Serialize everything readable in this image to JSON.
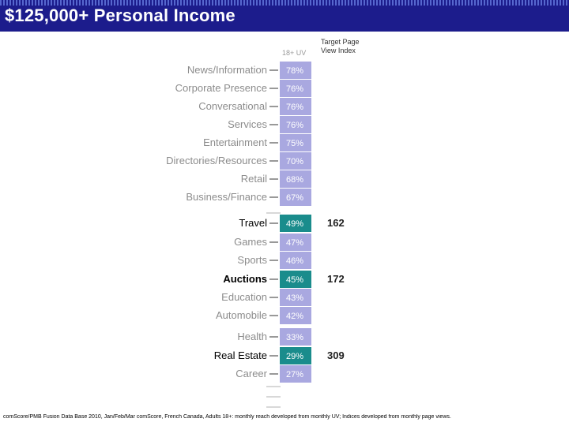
{
  "header": {
    "title": "$125,000+ Personal Income",
    "col_reach": "18+ UV",
    "col_index_line1": "Target Page",
    "col_index_line2": "View Index"
  },
  "colors": {
    "title_bg": "#1c1c8c",
    "bar_default": "#a9a8e0",
    "bar_highlight": "#1a8c8c",
    "label_muted": "#8c8c8c",
    "label_highlight": "#000000"
  },
  "chart_data": {
    "type": "bar",
    "orientation": "horizontal-table",
    "categories": [
      "News/Information",
      "Corporate Presence",
      "Conversational",
      "Services",
      "Entertainment",
      "Directories/Resources",
      "Retail",
      "Business/Finance",
      "Travel",
      "Games",
      "Sports",
      "Auctions",
      "Education",
      "Automobile",
      "Health",
      "Real Estate",
      "Career"
    ],
    "series": [
      {
        "name": "18+ UV",
        "values": [
          78,
          76,
          76,
          76,
          75,
          70,
          68,
          67,
          49,
          47,
          46,
          45,
          43,
          42,
          33,
          29,
          27
        ],
        "labels": [
          "78%",
          "76%",
          "76%",
          "76%",
          "75%",
          "70%",
          "68%",
          "67%",
          "49%",
          "47%",
          "46%",
          "45%",
          "43%",
          "42%",
          "33%",
          "29%",
          "27%"
        ]
      },
      {
        "name": "Target Page View Index",
        "values": [
          null,
          null,
          null,
          null,
          null,
          null,
          null,
          null,
          162,
          null,
          null,
          172,
          null,
          null,
          null,
          309,
          null
        ],
        "labels": [
          "",
          "",
          "",
          "",
          "",
          "",
          "",
          "",
          "162",
          "",
          "",
          "172",
          "",
          "",
          "",
          "309",
          ""
        ]
      }
    ],
    "highlighted": [
      "Travel",
      "Auctions",
      "Real Estate"
    ]
  },
  "footnote": "comScore/PMB Fusion Data Base 2010, Jan/Feb/Mar comScore, French Canada, Adults 18+: monthly reach developed from monthly UV; Indices developed from monthly page views."
}
